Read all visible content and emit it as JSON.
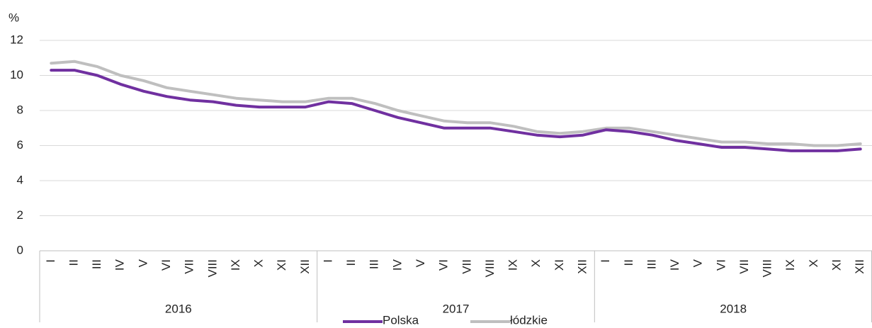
{
  "chart_data": {
    "type": "line",
    "y_label": "%",
    "categories": [
      "I",
      "II",
      "III",
      "IV",
      "V",
      "VI",
      "VII",
      "VIII",
      "IX",
      "X",
      "XI",
      "XII",
      "I",
      "II",
      "III",
      "IV",
      "V",
      "VI",
      "VII",
      "VIII",
      "IX",
      "X",
      "XI",
      "XII",
      "I",
      "II",
      "III",
      "IV",
      "V",
      "VI",
      "VII",
      "VIII",
      "IX",
      "X",
      "XI",
      "XII"
    ],
    "groups": [
      "2016",
      "2017",
      "2018"
    ],
    "series": [
      {
        "name": "Polska",
        "color": "#7030a0",
        "values": [
          10.3,
          10.3,
          10.0,
          9.5,
          9.1,
          8.8,
          8.6,
          8.5,
          8.3,
          8.2,
          8.2,
          8.2,
          8.5,
          8.4,
          8.0,
          7.6,
          7.3,
          7.0,
          7.0,
          7.0,
          6.8,
          6.6,
          6.5,
          6.6,
          6.9,
          6.8,
          6.6,
          6.3,
          6.1,
          5.9,
          5.9,
          5.8,
          5.7,
          5.7,
          5.7,
          5.8
        ]
      },
      {
        "name": "łódzkie",
        "color": "#bfbfbf",
        "values": [
          10.7,
          10.8,
          10.5,
          10.0,
          9.7,
          9.3,
          9.1,
          8.9,
          8.7,
          8.6,
          8.5,
          8.5,
          8.7,
          8.7,
          8.4,
          8.0,
          7.7,
          7.4,
          7.3,
          7.3,
          7.1,
          6.8,
          6.7,
          6.8,
          7.0,
          7.0,
          6.8,
          6.6,
          6.4,
          6.2,
          6.2,
          6.1,
          6.1,
          6.0,
          6.0,
          6.1
        ]
      }
    ],
    "ylim": [
      0,
      12
    ],
    "yticks": [
      0,
      2,
      4,
      6,
      8,
      10,
      12
    ],
    "grid": true,
    "legend": "bottom"
  }
}
